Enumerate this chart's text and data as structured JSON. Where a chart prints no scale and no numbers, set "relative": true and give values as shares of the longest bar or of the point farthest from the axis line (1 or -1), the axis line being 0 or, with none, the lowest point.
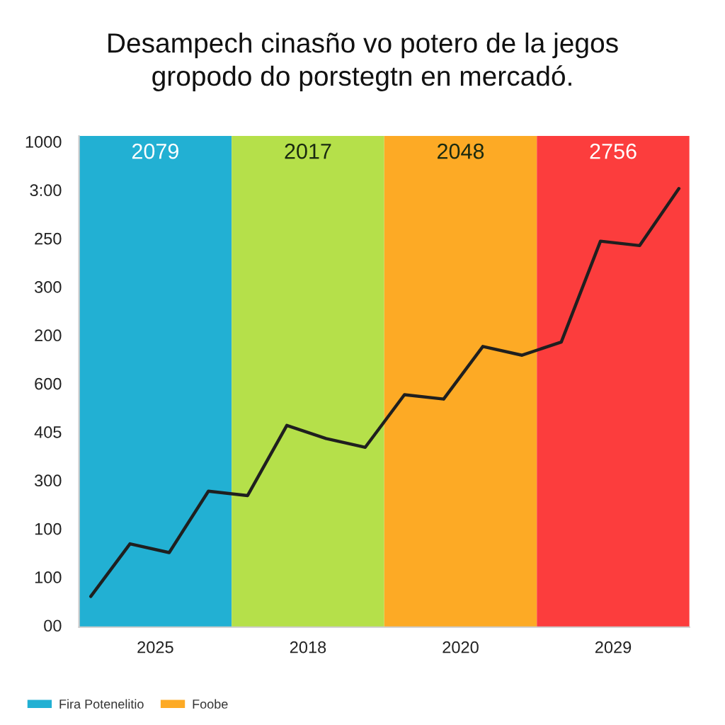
{
  "chart_data": [
    {
      "type": "bar",
      "title": "Desampech cinasño vo potero de la jegos\ngropodo do porstegtn en mercadó.",
      "categories": [
        "2025",
        "2018",
        "2020",
        "2029"
      ],
      "relative": true,
      "series": [
        {
          "name": "2079",
          "color": "#22b0d3",
          "values": [
            1,
            null,
            null,
            null
          ]
        },
        {
          "name": "2017",
          "color": "#b5e04a",
          "values": [
            null,
            1,
            null,
            null
          ]
        },
        {
          "name": "2048",
          "color": "#fdaa25",
          "values": [
            null,
            null,
            1,
            null
          ]
        },
        {
          "name": "2756",
          "color": "#fc3d3d",
          "values": [
            null,
            null,
            null,
            1
          ]
        },
        {
          "type": "area",
          "name": "Fira Potenelitio",
          "color": "#22b0d3",
          "values": [
            null,
            null,
            null,
            null
          ]
        },
        {
          "type": "area",
          "name": "Foobe",
          "color": "#fdaa25",
          "values": [
            null,
            null,
            null,
            null
          ]
        }
      ],
      "annotations": [
        "00",
        "100",
        "100",
        "300",
        "405",
        "600",
        "200",
        "300",
        "250",
        "3:00",
        "1000"
      ],
      "legend": "bottom"
    },
    {
      "type": "line",
      "categories": [
        null,
        null,
        null,
        null,
        null,
        null,
        null,
        null,
        null,
        null,
        null,
        null,
        null,
        null,
        null,
        null
      ],
      "relative": true,
      "series": [
        {
          "color": "#1f1f1f",
          "values": [
            0.07,
            0.19,
            0.17,
            0.31,
            0.3,
            0.46,
            0.43,
            0.41,
            0.53,
            0.52,
            0.64,
            0.62,
            0.65,
            0.88,
            0.87,
            1
          ]
        }
      ]
    }
  ]
}
